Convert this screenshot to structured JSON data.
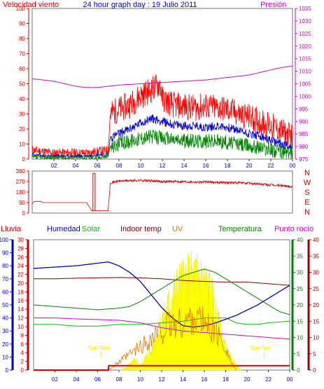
{
  "colors": {
    "wind_red": "#ff0000",
    "gust_red": "#e00000",
    "avg_blue": "#0000cc",
    "avg_green": "#008000",
    "pressure": "#cc00cc",
    "humidity": "#0000cc",
    "solar_green": "#00bb00",
    "indoor": "#800000",
    "uv": "#e07800",
    "temperature": "#008000",
    "dew": "#cc00cc",
    "axis_red": "#cc0000",
    "yellow": "#ffff00",
    "blue_axis": "#0000cc",
    "pink_axis": "#cc00cc",
    "green_axis": "#008000",
    "darkred_axis": "#990000"
  },
  "chart_data": [
    {
      "type": "line",
      "title": "24 hour graph day : 19 Julio 2011",
      "ylabel_left": "Velocidad viento",
      "ylabel_right": "Presión",
      "x_ticks": [
        "02",
        "04",
        "06",
        "08",
        "10",
        "12",
        "14",
        "16",
        "18",
        "20",
        "22",
        "00"
      ],
      "left_ticks": [
        "0",
        "10",
        "20",
        "30",
        "40",
        "50",
        "60",
        "70",
        "80",
        "90",
        "100"
      ],
      "right_ticks": [
        "975",
        "980",
        "985",
        "990",
        "995",
        "1000",
        "1005",
        "1010",
        "1015",
        "1020",
        "1025",
        "1030",
        "1035"
      ],
      "ylim_left": [
        0,
        100
      ],
      "ylim_right": [
        975,
        1035
      ],
      "series": [
        {
          "key": "gust",
          "x": [
            0,
            1,
            2,
            3,
            4,
            5,
            6,
            7,
            7.2,
            8,
            9,
            10,
            11,
            11.8,
            12,
            13,
            14,
            15,
            16,
            17,
            18,
            19,
            20,
            21,
            22,
            23,
            24
          ],
          "values": [
            6,
            5,
            4,
            4,
            4,
            4,
            5,
            6,
            30,
            33,
            36,
            42,
            46,
            50,
            40,
            36,
            35,
            34,
            35,
            34,
            33,
            30,
            28,
            25,
            22,
            18,
            15
          ]
        },
        {
          "key": "avg",
          "x": [
            0,
            1,
            2,
            3,
            4,
            5,
            6,
            7,
            7.2,
            8,
            9,
            10,
            11,
            12,
            13,
            14,
            15,
            16,
            17,
            18,
            19,
            20,
            21,
            22,
            23,
            24
          ],
          "values": [
            3,
            2,
            2,
            2,
            2,
            2,
            3,
            3,
            14,
            17,
            20,
            24,
            27,
            25,
            23,
            22,
            22,
            21,
            22,
            21,
            19,
            17,
            15,
            12,
            10,
            8
          ]
        },
        {
          "key": "speed",
          "x": [
            0,
            1,
            2,
            3,
            4,
            5,
            6,
            7,
            7.2,
            8,
            9,
            10,
            11,
            12,
            13,
            14,
            15,
            16,
            17,
            18,
            19,
            20,
            21,
            22,
            23,
            24
          ],
          "values": [
            1,
            1,
            1,
            1,
            1,
            1,
            1,
            2,
            8,
            10,
            12,
            14,
            15,
            14,
            13,
            12,
            12,
            12,
            12,
            11,
            10,
            9,
            8,
            6,
            5,
            4
          ]
        },
        {
          "key": "pressure",
          "x": [
            0,
            2,
            4,
            5,
            6,
            7,
            8,
            10,
            12,
            14,
            16,
            18,
            20,
            22,
            23,
            24
          ],
          "values": [
            1007,
            1006,
            1004,
            1003.5,
            1003.5,
            1004,
            1004.5,
            1005,
            1005.5,
            1006,
            1006.5,
            1007.5,
            1008.5,
            1010.5,
            1011.5,
            1012
          ]
        }
      ]
    },
    {
      "type": "line",
      "ylabel": "N W S E N",
      "right_letters": [
        "N",
        "W",
        "S",
        "E",
        "N"
      ],
      "left_ticks": [
        "360",
        "270",
        "180",
        "90",
        "0"
      ],
      "ylim": [
        0,
        360
      ],
      "x_ticks": [
        "02",
        "04",
        "06",
        "08",
        "10",
        "12",
        "14",
        "16",
        "18",
        "20",
        "22",
        "00"
      ],
      "series": [
        {
          "key": "direction",
          "x": [
            0,
            0.2,
            0.8,
            1.0,
            1.2,
            2,
            3,
            4,
            5,
            5.5,
            6,
            6.5,
            7,
            7.2,
            8,
            10,
            12,
            14,
            16,
            18,
            20,
            22,
            23,
            24
          ],
          "values": [
            80,
            100,
            100,
            90,
            90,
            90,
            90,
            90,
            90,
            20,
            20,
            20,
            20,
            260,
            275,
            280,
            270,
            270,
            265,
            262,
            255,
            240,
            235,
            225
          ]
        },
        {
          "key": "spike",
          "x": [
            5.6,
            5.6,
            5.8,
            5.8
          ],
          "values": [
            20,
            340,
            340,
            20
          ]
        }
      ]
    },
    {
      "type": "line",
      "legend": [
        "Lluvia",
        "Humedad",
        "Solar",
        "Indoor temp",
        "UV",
        "Temperatura",
        "Punto rocío"
      ],
      "annotations": [
        "Sun Rise",
        "Sun Set"
      ],
      "x_ticks": [
        "02",
        "04",
        "06",
        "08",
        "10",
        "12",
        "14",
        "16",
        "18",
        "20",
        "22",
        "00"
      ],
      "axis_blue_ticks": [
        "0",
        "10",
        "20",
        "30",
        "40",
        "50",
        "60",
        "70",
        "80",
        "90",
        "100"
      ],
      "axis_red_left_ticks": [
        "0",
        "2",
        "4",
        "6",
        "8",
        "10",
        "12",
        "14",
        "16",
        "18",
        "20",
        "22",
        "24",
        "26",
        "28",
        "30"
      ],
      "axis_green_ticks": [
        "0",
        "5",
        "10",
        "15",
        "20",
        "25",
        "30",
        "35",
        "40"
      ],
      "axis_darkred_ticks": [
        "0",
        "5",
        "10",
        "15",
        "20",
        "25",
        "30",
        "35",
        "40"
      ],
      "series": [
        {
          "key": "humidity",
          "x": [
            0,
            2,
            4,
            6,
            7,
            8,
            9,
            10,
            11,
            12,
            13,
            14,
            15,
            16,
            17,
            18,
            19,
            20,
            21,
            22,
            23,
            24
          ],
          "values": [
            78,
            79,
            80,
            82,
            83,
            80,
            75,
            68,
            58,
            48,
            40,
            34,
            33,
            34,
            36,
            39,
            42,
            46,
            50,
            55,
            60,
            65
          ]
        },
        {
          "key": "indoor",
          "x": [
            0,
            2,
            4,
            6,
            8,
            10,
            12,
            14,
            16,
            18,
            20,
            22,
            24
          ],
          "values": [
            28,
            28,
            28.2,
            28.3,
            28.4,
            28.3,
            28,
            27.5,
            27.2,
            27,
            27,
            26.5,
            26
          ]
        },
        {
          "key": "temperature",
          "x": [
            0,
            2,
            4,
            6,
            8,
            9,
            10,
            11,
            12,
            13,
            14,
            15,
            16,
            17,
            18,
            19,
            20,
            21,
            22,
            23,
            24
          ],
          "values": [
            20,
            19.5,
            19,
            18.5,
            19,
            19.5,
            21,
            23,
            25,
            27,
            29,
            30,
            31,
            30,
            28,
            26,
            24,
            22,
            20,
            18,
            17
          ]
        },
        {
          "key": "solar_green",
          "x": [
            0,
            2,
            4,
            6,
            8,
            10,
            12,
            14,
            16,
            18,
            19,
            20,
            21,
            22,
            24
          ],
          "values": [
            14,
            14,
            13.5,
            13.5,
            14,
            14,
            14.5,
            15,
            16,
            16,
            14.5,
            14,
            14,
            14.5,
            15
          ]
        },
        {
          "key": "dew",
          "x": [
            0,
            2,
            4,
            6,
            8,
            10,
            12,
            14,
            16,
            18,
            20,
            22,
            24
          ],
          "values": [
            16,
            16,
            15.7,
            15.5,
            15.3,
            14.5,
            13,
            12,
            11.5,
            11,
            10.5,
            10,
            9.5
          ]
        },
        {
          "key": "uv",
          "x": [
            7,
            8,
            9,
            10,
            11,
            12,
            13,
            14,
            15,
            16,
            17,
            18,
            18.5,
            19
          ],
          "values": [
            0,
            1,
            2,
            3,
            4,
            5,
            6,
            6,
            7,
            6,
            5,
            3,
            1,
            0
          ]
        },
        {
          "key": "rain",
          "x": [
            0,
            7,
            7.05,
            24
          ],
          "values": [
            0,
            0,
            1,
            1
          ]
        },
        {
          "key": "solar",
          "x": [
            8,
            8.5,
            9,
            9.5,
            10,
            10.5,
            11,
            11.5,
            12,
            12.5,
            13,
            13.5,
            14,
            14.5,
            15,
            15.5,
            16,
            16.5,
            17,
            17.5,
            18,
            18.5,
            19,
            19.5
          ],
          "values": [
            0,
            10,
            30,
            55,
            20,
            70,
            95,
            180,
            260,
            320,
            390,
            430,
            470,
            480,
            490,
            500,
            470,
            430,
            320,
            200,
            120,
            60,
            25,
            0
          ]
        }
      ]
    }
  ]
}
